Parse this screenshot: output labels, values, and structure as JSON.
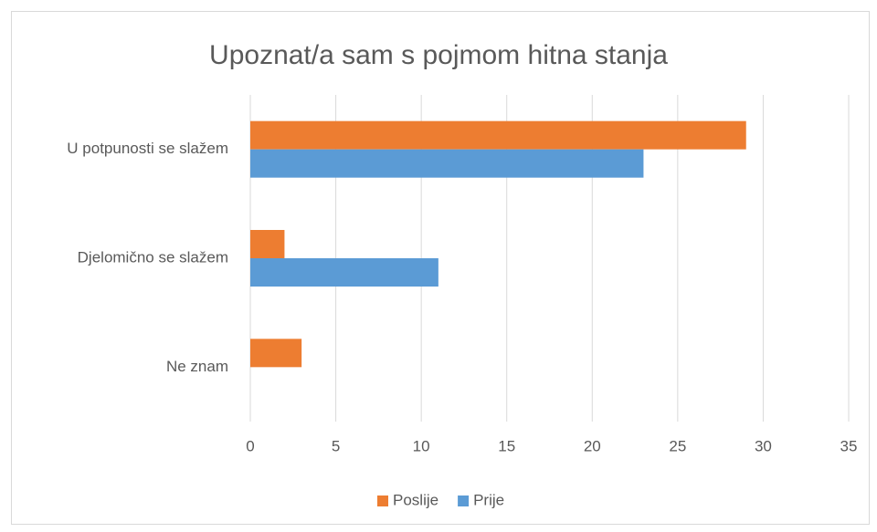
{
  "chart_data": {
    "type": "bar",
    "orientation": "horizontal",
    "title": "Upoznat/a sam s pojmom hitna stanja",
    "categories": [
      "U potpunosti se slažem",
      "Djelomično se slažem",
      "Ne znam"
    ],
    "series": [
      {
        "name": "Poslije",
        "color": "#ed7d31",
        "values": [
          29,
          2,
          3
        ]
      },
      {
        "name": "Prije",
        "color": "#5b9bd5",
        "values": [
          23,
          11,
          0
        ]
      }
    ],
    "xlim": [
      0,
      35
    ],
    "xticks": [
      0,
      5,
      10,
      15,
      20,
      25,
      30,
      35
    ],
    "grid": true,
    "legend": "bottom"
  }
}
